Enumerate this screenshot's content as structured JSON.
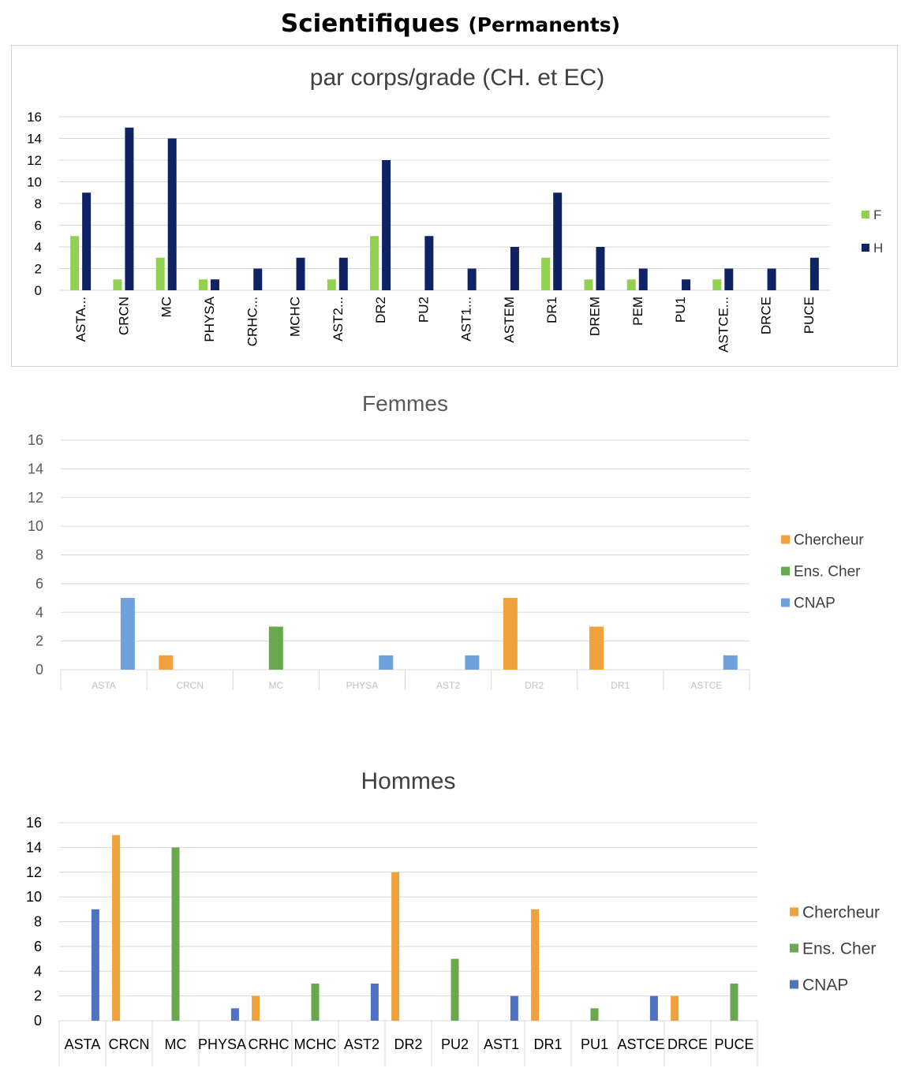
{
  "page_title": {
    "main": "Scientifiques",
    "sub": "(Permanents)"
  },
  "chart_data": [
    {
      "type": "bar",
      "title": "par corps/grade (CH. et EC)",
      "categories": [
        "ASTA...",
        "CRCN",
        "MC",
        "PHYSA",
        "CRHC...",
        "MCHC",
        "AST2...",
        "DR2",
        "PU2",
        "AST1...",
        "ASTEM",
        "DR1",
        "DREM",
        "PEM",
        "PU1",
        "ASTCE...",
        "DRCE",
        "PUCE"
      ],
      "series": [
        {
          "name": "F",
          "color": "#92d050",
          "values": [
            5,
            1,
            3,
            1,
            0,
            0,
            1,
            5,
            0,
            0,
            0,
            3,
            1,
            1,
            0,
            1,
            0,
            0
          ]
        },
        {
          "name": "H",
          "color": "#0f2264",
          "values": [
            9,
            15,
            14,
            1,
            2,
            3,
            3,
            12,
            5,
            2,
            4,
            9,
            4,
            2,
            1,
            2,
            2,
            3
          ]
        }
      ],
      "ylim": [
        0,
        16
      ],
      "yticks": [
        0,
        2,
        4,
        6,
        8,
        10,
        12,
        14,
        16
      ],
      "grid": true,
      "legend": "right"
    },
    {
      "type": "bar",
      "title": "Femmes",
      "categories": [
        "ASTA",
        "CRCN",
        "MC",
        "PHYSA",
        "AST2",
        "DR2",
        "DR1",
        "ASTCE"
      ],
      "series": [
        {
          "name": "Chercheur",
          "color": "#f0a03c",
          "values": [
            0,
            1,
            0,
            0,
            0,
            5,
            3,
            0
          ]
        },
        {
          "name": "Ens. Cher",
          "color": "#6aa84f",
          "values": [
            0,
            0,
            3,
            0,
            0,
            0,
            0,
            0
          ]
        },
        {
          "name": "CNAP",
          "color": "#6fa2dc",
          "values": [
            5,
            0,
            0,
            1,
            1,
            0,
            0,
            1
          ]
        }
      ],
      "ylim": [
        0,
        16
      ],
      "yticks": [
        0,
        2,
        4,
        6,
        8,
        10,
        12,
        14,
        16
      ],
      "grid": true,
      "legend": "right"
    },
    {
      "type": "bar",
      "title": "Hommes",
      "categories": [
        "ASTA",
        "CRCN",
        "MC",
        "PHYSA",
        "CRHC",
        "MCHC",
        "AST2",
        "DR2",
        "PU2",
        "AST1",
        "DR1",
        "PU1",
        "ASTCE",
        "DRCE",
        "PUCE"
      ],
      "series": [
        {
          "name": "Chercheur",
          "color": "#f0a03c",
          "values": [
            0,
            15,
            0,
            0,
            2,
            0,
            0,
            12,
            0,
            0,
            9,
            0,
            0,
            2,
            0
          ]
        },
        {
          "name": "Ens. Cher",
          "color": "#6aa84f",
          "values": [
            0,
            0,
            14,
            0,
            0,
            3,
            0,
            0,
            5,
            0,
            0,
            1,
            0,
            0,
            3
          ]
        },
        {
          "name": "CNAP",
          "color": "#4f72c4",
          "values": [
            9,
            0,
            0,
            1,
            0,
            0,
            3,
            0,
            0,
            2,
            0,
            0,
            2,
            0,
            0
          ]
        }
      ],
      "ylim": [
        0,
        16
      ],
      "yticks": [
        0,
        2,
        4,
        6,
        8,
        10,
        12,
        14,
        16
      ],
      "grid": true,
      "legend": "right"
    }
  ]
}
